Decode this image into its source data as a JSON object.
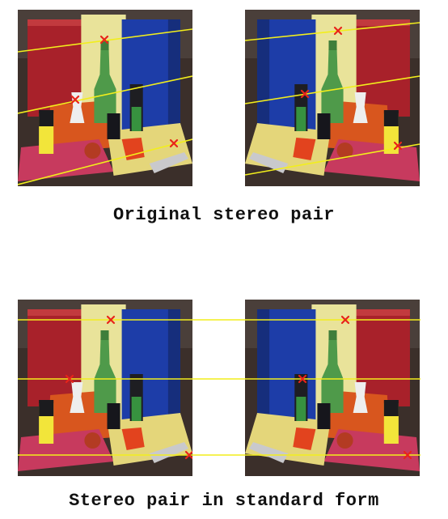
{
  "captions": {
    "top": "Original stereo pair",
    "bottom": "Stereo pair in standard form"
  },
  "colors": {
    "epipolar_line": "#f2ee1c",
    "point_marker": "#e8241a"
  }
}
